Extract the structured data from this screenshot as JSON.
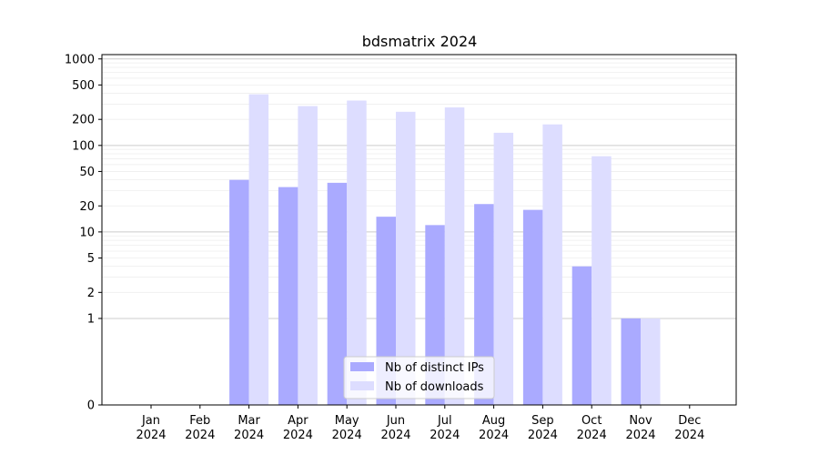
{
  "chart_data": {
    "type": "bar",
    "title": "bdsmatrix 2024",
    "xlabel": "",
    "ylabel": "",
    "yscale": "symlog",
    "grid": true,
    "legend_position": "lower-center",
    "categories": [
      {
        "month": "Jan",
        "year": "2024"
      },
      {
        "month": "Feb",
        "year": "2024"
      },
      {
        "month": "Mar",
        "year": "2024"
      },
      {
        "month": "Apr",
        "year": "2024"
      },
      {
        "month": "May",
        "year": "2024"
      },
      {
        "month": "Jun",
        "year": "2024"
      },
      {
        "month": "Jul",
        "year": "2024"
      },
      {
        "month": "Aug",
        "year": "2024"
      },
      {
        "month": "Sep",
        "year": "2024"
      },
      {
        "month": "Oct",
        "year": "2024"
      },
      {
        "month": "Nov",
        "year": "2024"
      },
      {
        "month": "Dec",
        "year": "2024"
      }
    ],
    "series": [
      {
        "name": "Nb of distinct IPs",
        "color": "#aaaaff",
        "values": [
          0,
          0,
          40,
          33,
          37,
          15,
          12,
          21,
          18,
          4,
          1,
          0
        ]
      },
      {
        "name": "Nb of downloads",
        "color": "#ddddff",
        "values": [
          0,
          0,
          390,
          285,
          330,
          245,
          275,
          140,
          175,
          75,
          1,
          0
        ]
      }
    ],
    "yticks": [
      {
        "value": 0,
        "label": "0"
      },
      {
        "value": 1,
        "label": "1"
      },
      {
        "value": 2,
        "label": "2"
      },
      {
        "value": 5,
        "label": "5"
      },
      {
        "value": 10,
        "label": "10"
      },
      {
        "value": 20,
        "label": "20"
      },
      {
        "value": 50,
        "label": "50"
      },
      {
        "value": 100,
        "label": "100"
      },
      {
        "value": 200,
        "label": "200"
      },
      {
        "value": 500,
        "label": "500"
      },
      {
        "value": 1000,
        "label": "1000"
      }
    ]
  }
}
